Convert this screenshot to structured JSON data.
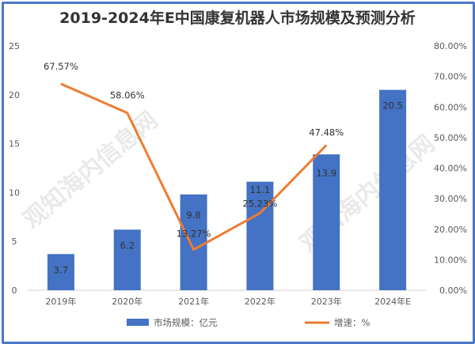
{
  "chart_data": {
    "type": "bar+line",
    "title": "2019-2024年E中国康复机器人市场规模及预测分析",
    "categories": [
      "2019年",
      "2020年",
      "2021年",
      "2022年",
      "2023年",
      "2024年E"
    ],
    "series": [
      {
        "name": "市场规模：亿元",
        "type": "bar",
        "axis": "left",
        "color": "#4472c4",
        "values": [
          3.7,
          6.2,
          9.8,
          11.1,
          13.9,
          20.5
        ],
        "labels": [
          "3.7",
          "6.2",
          "9.8",
          "11.1",
          "13.9",
          "20.5"
        ]
      },
      {
        "name": "增速：%",
        "type": "line",
        "axis": "right",
        "color": "#ed7d31",
        "values": [
          67.57,
          58.06,
          13.27,
          25.23,
          47.48,
          null
        ],
        "labels": [
          "67.57%",
          "58.06%",
          "13.27%",
          "25.23%",
          "47.48%",
          ""
        ]
      }
    ],
    "left_axis": {
      "range": [
        0,
        25
      ],
      "ticks": [
        "0",
        "5",
        "10",
        "15",
        "20",
        "25"
      ]
    },
    "right_axis": {
      "range": [
        0,
        80
      ],
      "ticks": [
        "0.00%",
        "10.00%",
        "20.00%",
        "30.00%",
        "40.00%",
        "50.00%",
        "60.00%",
        "70.00%",
        "80.00%"
      ]
    },
    "grid": false,
    "legend": "bottom"
  },
  "watermark": "观知海内信息网 DONGFANGGOB.COM"
}
